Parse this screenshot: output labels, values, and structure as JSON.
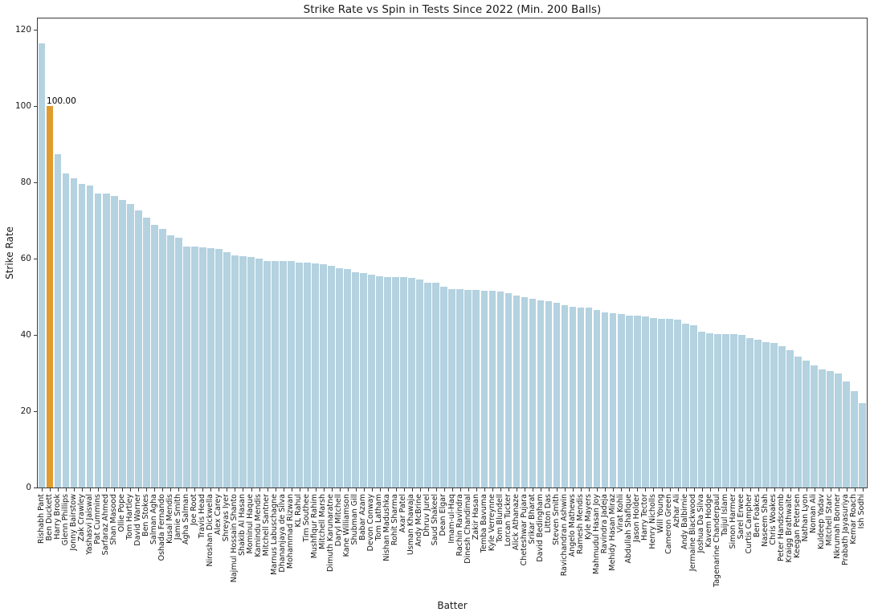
{
  "chart_data": {
    "type": "bar",
    "title": "Strike Rate vs Spin in Tests Since 2022 (Min. 200 Balls)",
    "xlabel": "Batter",
    "ylabel": "Strike Rate",
    "yticks": [
      0,
      20,
      40,
      60,
      80,
      100,
      120
    ],
    "ylim": [
      0,
      123
    ],
    "grid": false,
    "legend": "none",
    "bar_color": "#b4d2e0",
    "highlight_color": "#e09c2e",
    "highlight_index": 1,
    "annotation": {
      "text": "100.00",
      "bar_index": 1
    },
    "categories": [
      "Rishabh Pant",
      "Ben Duckett",
      "Harry Brook",
      "Glenn Phillips",
      "Jonny Bairstow",
      "Zak Crawley",
      "Yashasvi Jaiswal",
      "Pat Cummins",
      "Sarfaraz Ahmed",
      "Shan Masood",
      "Ollie Pope",
      "Tom Hartley",
      "David Warner",
      "Ben Stokes",
      "Salman Agha",
      "Oshada Fernando",
      "Kusal Mendis",
      "Jamie Smith",
      "Agha Salman",
      "Joe Root",
      "Travis Head",
      "Niroshan Dickwella",
      "Alex Carey",
      "Shreyas Iyer",
      "Najmul Hossain Shanto",
      "Shakib Al Hasan",
      "Mominul Haque",
      "Kamindu Mendis",
      "Mitchell Santner",
      "Marnus Labuschagne",
      "Dhananjaya de Silva",
      "Mohammad Rizwan",
      "KL Rahul",
      "Tim Southee",
      "Mushfiqur Rahim",
      "Mitchell Marsh",
      "Dimuth Karunaratne",
      "Daryl Mitchell",
      "Kane Williamson",
      "Shubman Gill",
      "Babar Azam",
      "Devon Conway",
      "Tom Latham",
      "Nishan Madushka",
      "Rohit Sharma",
      "Axar Patel",
      "Usman Khawaja",
      "Andy McBrine",
      "Dhruv Jurel",
      "Saud Shakeel",
      "Dean Elgar",
      "Imam-ul-Haq",
      "Rachin Ravindra",
      "Dinesh Chandimal",
      "Zakir Hasan",
      "Temba Bavuma",
      "Kyle Verreynne",
      "Tom Blundell",
      "Lorcan Tucker",
      "Alick Athanaze",
      "Cheteshwar Pujara",
      "Srikar Bharat",
      "David Bedingham",
      "Litton Das",
      "Steven Smith",
      "Ravichandran Ashwin",
      "Angelo Mathews",
      "Ramesh Mendis",
      "Kyle Mayers",
      "Mahmudul Hasan Joy",
      "Ravindra Jadeja",
      "Mehidy Hasan Miraz",
      "Virat Kohli",
      "Abdullah Shafique",
      "Jason Holder",
      "Harry Tector",
      "Henry Nicholls",
      "Will Young",
      "Cameron Green",
      "Azhar Ali",
      "Andy Balbirnie",
      "Jermaine Blackwood",
      "Joshua Da Silva",
      "Kavem Hodge",
      "Tagenarine Chanderpaul",
      "Taijul Islam",
      "Simon Harmer",
      "Sarel Erwee",
      "Curtis Campher",
      "Ben Foakes",
      "Naseem Shah",
      "Chris Woakes",
      "Peter Handscomb",
      "Kraigg Brathwaite",
      "Keegan Petersen",
      "Nathan Lyon",
      "Noman Ali",
      "Kuldeep Yadav",
      "Mitchell Starc",
      "Nkrumah Bonner",
      "Prabath Jayasuriya",
      "Kemar Roach",
      "Ish Sodhi"
    ],
    "values": [
      116.4,
      100.0,
      87.5,
      82.3,
      81.0,
      79.7,
      79.1,
      77.1,
      77.0,
      76.4,
      75.5,
      74.3,
      72.7,
      70.7,
      68.9,
      67.9,
      66.1,
      65.4,
      63.2,
      63.1,
      62.9,
      62.7,
      62.5,
      61.7,
      60.9,
      60.6,
      60.5,
      60.1,
      59.5,
      59.5,
      59.4,
      59.3,
      59.0,
      58.9,
      58.8,
      58.6,
      58.1,
      57.4,
      57.2,
      56.4,
      56.2,
      55.9,
      55.4,
      55.2,
      55.2,
      55.1,
      55.0,
      54.5,
      53.8,
      53.7,
      52.7,
      52.0,
      52.0,
      51.8,
      51.8,
      51.7,
      51.6,
      51.3,
      51.0,
      50.4,
      49.9,
      49.4,
      49.0,
      48.9,
      48.5,
      47.9,
      47.3,
      47.2,
      47.1,
      46.5,
      45.9,
      45.8,
      45.5,
      45.1,
      45.0,
      44.9,
      44.5,
      44.3,
      44.2,
      44.1,
      43.0,
      42.6,
      40.8,
      40.5,
      40.3,
      40.3,
      40.2,
      40.0,
      39.2,
      38.8,
      38.2,
      38.0,
      37.0,
      36.0,
      34.3,
      33.3,
      32.1,
      31.0,
      30.6,
      30.0,
      27.7,
      25.2,
      22.2
    ]
  }
}
